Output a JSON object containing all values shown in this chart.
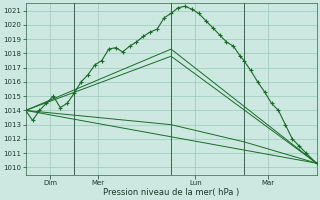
{
  "xlabel": "Pression niveau de la mer( hPa )",
  "bg_color": "#cce8e0",
  "grid_color": "#99ccbb",
  "line_color": "#1a6b2a",
  "spine_color": "#336644",
  "ylim": [
    1009.5,
    1021.5
  ],
  "yticks": [
    1010,
    1011,
    1012,
    1013,
    1014,
    1015,
    1016,
    1017,
    1018,
    1019,
    1020,
    1021
  ],
  "xlim": [
    0,
    84
  ],
  "xtick_positions": [
    7,
    21,
    49,
    70
  ],
  "xtick_labels": [
    "Dim",
    "Mer",
    "Lun",
    "Mar"
  ],
  "vline_positions": [
    14,
    42,
    63
  ],
  "main_series_x": [
    0,
    2,
    4,
    6,
    8,
    10,
    12,
    14,
    16,
    18,
    20,
    22,
    24,
    26,
    28,
    30,
    32,
    34,
    36,
    38,
    40,
    42,
    44,
    46,
    48,
    50,
    52,
    54,
    56,
    58,
    60,
    62,
    63,
    65,
    67,
    69,
    71,
    73,
    75,
    77,
    79,
    81,
    84
  ],
  "main_series_y": [
    1014.0,
    1013.3,
    1014.0,
    1014.5,
    1015.0,
    1014.2,
    1014.5,
    1015.2,
    1016.0,
    1016.5,
    1017.2,
    1017.5,
    1018.3,
    1018.4,
    1018.1,
    1018.5,
    1018.8,
    1019.2,
    1019.5,
    1019.7,
    1020.5,
    1020.8,
    1021.2,
    1021.3,
    1021.1,
    1020.8,
    1020.3,
    1019.8,
    1019.3,
    1018.8,
    1018.5,
    1017.8,
    1017.5,
    1016.8,
    1016.0,
    1015.3,
    1014.5,
    1014.0,
    1013.0,
    1012.0,
    1011.5,
    1011.0,
    1010.3
  ],
  "straight_lines": [
    {
      "x": [
        0,
        42,
        84
      ],
      "y": [
        1014.0,
        1018.3,
        1010.3
      ]
    },
    {
      "x": [
        0,
        42,
        84
      ],
      "y": [
        1014.0,
        1017.8,
        1010.3
      ]
    },
    {
      "x": [
        0,
        84
      ],
      "y": [
        1014.0,
        1010.3
      ]
    },
    {
      "x": [
        0,
        42,
        63,
        84
      ],
      "y": [
        1014.0,
        1013.0,
        1011.8,
        1010.3
      ]
    }
  ]
}
